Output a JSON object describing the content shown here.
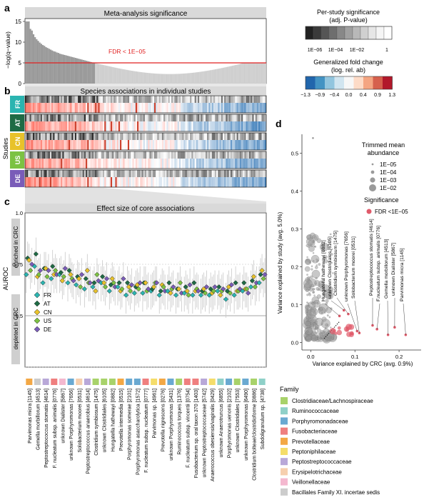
{
  "panel_letters": {
    "a": "a",
    "b": "b",
    "c": "c",
    "d": "d"
  },
  "panel_a": {
    "title": "Meta-analysis significance",
    "ylabel": "−log(q−value)",
    "yticks": [
      "0",
      "5",
      "10",
      "15"
    ],
    "threshold_label": "FDR < 1E−05",
    "threshold_value": 5,
    "ymax": 15
  },
  "legend_significance": {
    "title_line1": "Per-study significance",
    "title_line2": "(adj. P-value)",
    "ticks": [
      "1E−06",
      "1E−04",
      "1E−02",
      "1"
    ]
  },
  "legend_foldchange": {
    "title_line1": "Generalized fold change",
    "title_line2": "(log. rel. ab)",
    "ticks": [
      "−1.3",
      "−0.9",
      "−0.4",
      "0.0",
      "0.4",
      "0.9",
      "1.3"
    ]
  },
  "panel_b": {
    "title": "Species associations in individual studies",
    "axis_label": "Studies",
    "studies": [
      {
        "code": "FR",
        "color": "#2bb4b0"
      },
      {
        "code": "AT",
        "color": "#1f6b45"
      },
      {
        "code": "CN",
        "color": "#e8c22a"
      },
      {
        "code": "US",
        "color": "#7cc242"
      },
      {
        "code": "DE",
        "color": "#7a5cb8"
      }
    ]
  },
  "panel_c": {
    "title": "Effect size of core associations",
    "ylabel": "AUROC",
    "yticks": [
      "0.5",
      "0.75",
      "1.0"
    ],
    "enriched_label": "enriched in CRC",
    "depleted_label": "depleted in CRC",
    "legend": [
      "FR",
      "AT",
      "CN",
      "US",
      "DE"
    ]
  },
  "species": [
    {
      "name": "Parvimonas micra",
      "id": "[1145]",
      "family": 4
    },
    {
      "name": "Gemella morbillorum",
      "id": "[4513]",
      "family": 9
    },
    {
      "name": "Peptostreptococcus stomatis",
      "id": "[4614]",
      "family": 6
    },
    {
      "name": "F. nucleatum  subsp. animalis",
      "id": "[0776]",
      "family": 3
    },
    {
      "name": "unknown Dialister",
      "id": "[5867]",
      "family": 8
    },
    {
      "name": "unknown Porphyromonas",
      "id": "[7656]",
      "family": 2
    },
    {
      "name": "Solobacterium moorei",
      "id": "[0531]",
      "family": 7
    },
    {
      "name": "Peptostreptococcus anaerobius",
      "id": "[4614]",
      "family": 6
    },
    {
      "name": "Clostridium symbiosum",
      "id": "[1475]",
      "family": 0
    },
    {
      "name": "unknown Clostridiales",
      "id": "[6105]",
      "family": 0
    },
    {
      "name": "Hungatella hathewayi",
      "id": "[0882]",
      "family": 0
    },
    {
      "name": "Prevotella intermedia",
      "id": "[0515]",
      "family": 4
    },
    {
      "name": "Porphyromonas somerae",
      "id": "[2101]",
      "family": 2
    },
    {
      "name": "Porphyromonas asaccharolytica",
      "id": "[1572]",
      "family": 2
    },
    {
      "name": "F. nucleatum  subsp. nucleatum",
      "id": "[0777]",
      "family": 3
    },
    {
      "name": "Parvimonas  sp.",
      "id": "[4961]",
      "family": 5
    },
    {
      "name": "Prevotella nigrescens",
      "id": "[0276]",
      "family": 4
    },
    {
      "name": "unknown Porphyromonas",
      "id": "[5431]",
      "family": 2
    },
    {
      "name": "Ruminococcus torques",
      "id": "[1376]",
      "family": 0
    },
    {
      "name": "F. nucleatum  subsp. vincentii",
      "id": "[0754]",
      "family": 3
    },
    {
      "name": "Fusobacterium  sp. oral taxon 370",
      "id": "[1403]",
      "family": 3
    },
    {
      "name": "unknown Peptostreptococcaceae",
      "id": "[5742]",
      "family": 6
    },
    {
      "name": "Anaerococcus obesiensis/vaginalis",
      "id": "[0429]",
      "family": 5
    },
    {
      "name": "unknown Anaerotruncus",
      "id": "[6855]",
      "family": 1
    },
    {
      "name": "Porphyromonas uenonis",
      "id": "[2102]",
      "family": 2
    },
    {
      "name": "unknown Clostridiales",
      "id": "[7553]",
      "family": 0
    },
    {
      "name": "unknown Porphyromonas",
      "id": "[6490]",
      "family": 2
    },
    {
      "name": "Clostridium bolteae/clostridioforme",
      "id": "[0886]",
      "family": 0
    },
    {
      "name": "Subdoligranulum  sp.",
      "id": "[4738]",
      "family": 1
    }
  ],
  "families": {
    "title": "Family",
    "items": [
      {
        "name": "Clostridiaceae/Lachnospiraceae",
        "color": "#a8d26a"
      },
      {
        "name": "Ruminococcaceae",
        "color": "#8fd0c8"
      },
      {
        "name": "Porphyromonadaceae",
        "color": "#6aa9d1"
      },
      {
        "name": "Fusobacteriaceae",
        "color": "#ef7f7f"
      },
      {
        "name": "Prevotellaceae",
        "color": "#f3a845"
      },
      {
        "name": "Peptoniphilaceae",
        "color": "#f5dd6a"
      },
      {
        "name": "Peptostreptococcaceae",
        "color": "#b8a8d8"
      },
      {
        "name": "Erysipelotrichaceae",
        "color": "#f6cfae"
      },
      {
        "name": "Veillonellaceae",
        "color": "#f4b8cf"
      },
      {
        "name": "Bacillales Family XI. incertae sedis",
        "color": "#cccccc"
      }
    ]
  },
  "panel_d": {
    "xlabel": "Variance explained by CRC (avg. 0.9%)",
    "ylabel": "Variance explained by study (avg. 5.0%)",
    "xticks": [
      "0.0",
      "0.1",
      "0.2"
    ],
    "yticks": [
      "0.0",
      "0.1",
      "0.2",
      "0.3",
      "0.4",
      "0.5"
    ],
    "size_legend_title_line1": "Trimmed mean",
    "size_legend_title_line2": "abundance",
    "size_legend": [
      "1E−05",
      "1E−04",
      "1E−03",
      "1E−02"
    ],
    "sig_legend_title": "Significance",
    "sig_legend_item": "FDR <1E−05",
    "labels": [
      "Hungatella hathewayi  [0882]",
      "unknown Clostridiales  [6105]",
      "Clostridium symbiosum  [1475]",
      "unknown Porphyromonas  [7656]",
      "Solobacterium moorei  [0531]",
      "Peptostreptococcus stomatis  [4614]",
      "F.nucleatum subsp. animalis  [0776]",
      "Gemella morbillorum  [4513]",
      "unknown Dialister  [5867]",
      "Parvimonas micra  [1145]"
    ]
  },
  "chart_data": [
    {
      "type": "bar",
      "title": "Meta-analysis significance",
      "ylabel": "−log(q−value)",
      "ylim": [
        0,
        15
      ],
      "threshold": 5,
      "values_head": [
        15,
        15,
        15,
        13.2,
        12.8,
        11.9,
        11.2,
        10.7,
        10.3,
        9.9,
        9.6,
        9.3,
        9.1,
        8.8,
        8.6,
        8.4,
        8.2,
        8.0,
        7.8,
        7.7,
        7.5,
        7.4,
        7.2,
        7.1,
        7.0,
        6.9,
        6.8,
        6.7,
        6.6,
        6.5,
        6.4,
        6.3,
        6.2,
        6.1,
        6.0,
        5.9,
        5.8,
        5.7,
        5.6,
        5.5,
        5.4,
        5.3,
        5.2,
        5.1,
        5.05
      ],
      "values_tail_range": [
        2.2,
        5.0
      ],
      "n_bars": 155
    },
    {
      "type": "scatter",
      "title": "Effect size of core associations",
      "ylabel": "AUROC",
      "ylim": [
        0.25,
        1.0
      ],
      "categories": [
        "[1145]",
        "[4513]",
        "[4614]",
        "[0776]",
        "[5867]",
        "[7656]",
        "[0531]",
        "[4614]",
        "[1475]",
        "[6105]",
        "[0882]",
        "[0515]",
        "[2101]",
        "[1572]",
        "[0777]",
        "[4961]",
        "[0276]",
        "[5431]",
        "[1376]",
        "[0754]",
        "[1403]",
        "[5742]",
        "[0429]",
        "[6855]",
        "[2102]",
        "[7553]",
        "[6490]",
        "[0886]",
        "[4738]"
      ],
      "series": [
        {
          "name": "FR",
          "values": [
            0.7,
            0.74,
            0.66,
            0.68,
            0.7,
            0.66,
            0.65,
            0.63,
            0.64,
            0.66,
            0.62,
            0.64,
            0.6,
            0.61,
            0.61,
            0.62,
            0.6,
            0.62,
            0.6,
            0.61,
            0.6,
            0.6,
            0.6,
            0.62,
            0.58,
            0.6,
            0.62,
            0.64,
            0.66
          ]
        },
        {
          "name": "AT",
          "values": [
            0.78,
            0.8,
            0.73,
            0.74,
            0.71,
            0.72,
            0.69,
            0.68,
            0.66,
            0.69,
            0.65,
            0.66,
            0.66,
            0.64,
            0.66,
            0.63,
            0.62,
            0.66,
            0.63,
            0.64,
            0.66,
            0.62,
            0.63,
            0.64,
            0.62,
            0.66,
            0.66,
            0.67,
            0.7
          ]
        },
        {
          "name": "CN",
          "values": [
            0.77,
            0.69,
            0.73,
            0.7,
            0.67,
            0.7,
            0.68,
            0.72,
            0.62,
            0.66,
            0.68,
            0.62,
            0.64,
            0.65,
            0.66,
            0.64,
            0.65,
            0.61,
            0.63,
            0.62,
            0.62,
            0.63,
            0.61,
            0.6,
            0.64,
            0.62,
            0.63,
            0.69,
            0.72
          ]
        },
        {
          "name": "US",
          "values": [
            0.72,
            0.7,
            0.69,
            0.72,
            0.69,
            0.68,
            0.64,
            0.66,
            0.7,
            0.64,
            0.66,
            0.63,
            0.62,
            0.63,
            0.62,
            0.66,
            0.64,
            0.63,
            0.66,
            0.6,
            0.63,
            0.61,
            0.62,
            0.62,
            0.61,
            0.62,
            0.63,
            0.64,
            0.68
          ]
        },
        {
          "name": "DE",
          "values": [
            0.75,
            0.72,
            0.72,
            0.7,
            0.73,
            0.67,
            0.7,
            0.66,
            0.67,
            0.68,
            0.64,
            0.68,
            0.65,
            0.66,
            0.63,
            0.66,
            0.62,
            0.64,
            0.61,
            0.65,
            0.62,
            0.64,
            0.64,
            0.63,
            0.65,
            0.63,
            0.61,
            0.66,
            0.7
          ]
        }
      ]
    },
    {
      "type": "scatter",
      "xlabel": "Variance explained by CRC (avg. 0.9%)",
      "ylabel": "Variance explained by study (avg. 5.0%)",
      "xlim": [
        -0.02,
        0.25
      ],
      "ylim": [
        -0.02,
        0.55
      ],
      "labelled_points": [
        {
          "label": "Hungatella hathewayi [0882]",
          "x": 0.065,
          "y": 0.07
        },
        {
          "label": "unknown Clostridiales [6105]",
          "x": 0.075,
          "y": 0.085
        },
        {
          "label": "Clostridium symbiosum [1475]",
          "x": 0.085,
          "y": 0.075
        },
        {
          "label": "unknown Porphyromonas [7656]",
          "x": 0.105,
          "y": 0.03
        },
        {
          "label": "Solobacterium moorei [0531]",
          "x": 0.11,
          "y": 0.025
        },
        {
          "label": "Peptostreptococcus stomatis [4614]",
          "x": 0.14,
          "y": 0.045
        },
        {
          "label": "F.nucleatum subsp. animalis [0776]",
          "x": 0.15,
          "y": 0.035
        },
        {
          "label": "Gemella morbillorum [4513]",
          "x": 0.175,
          "y": 0.02
        },
        {
          "label": "unknown Dialister [5867]",
          "x": 0.19,
          "y": 0.04
        },
        {
          "label": "Parvimonas micra [1145]",
          "x": 0.215,
          "y": 0.02
        }
      ],
      "outlier": {
        "x": 0.005,
        "y": 0.54
      }
    }
  ]
}
